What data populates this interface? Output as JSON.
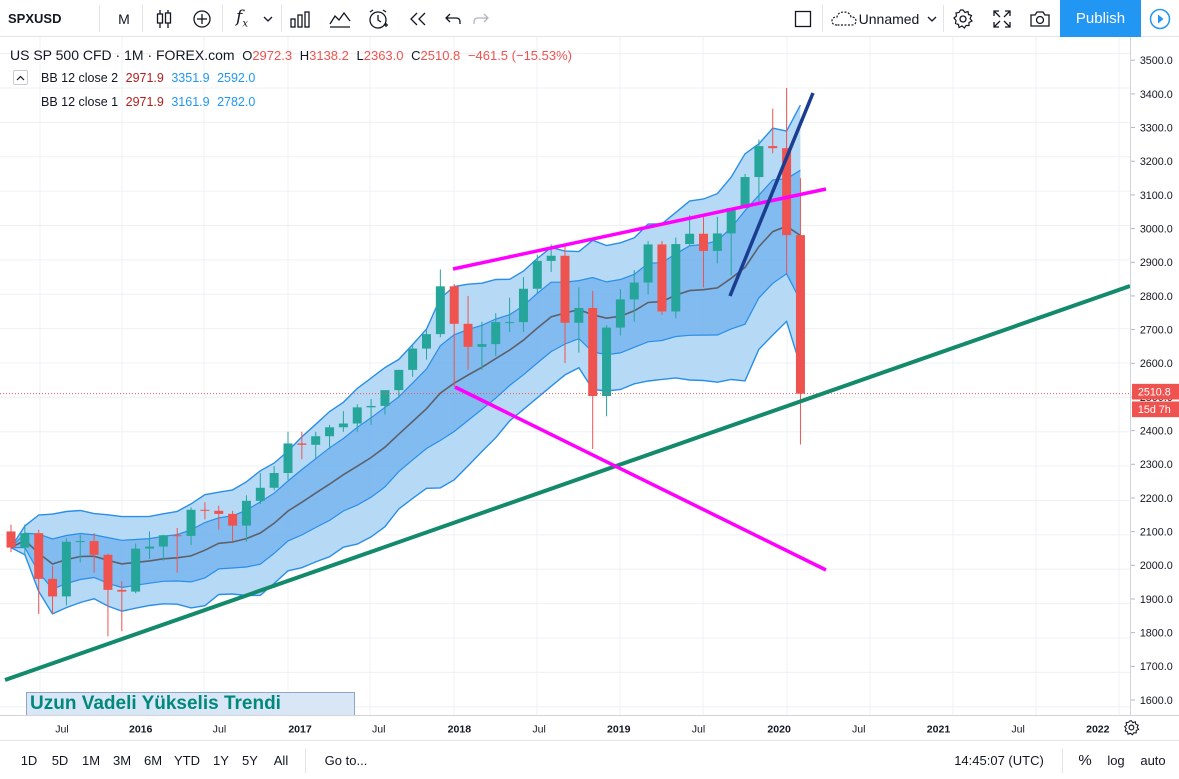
{
  "toolbar": {
    "symbol": "SPXUSD",
    "interval": "M",
    "layout_name": "Unnamed",
    "publish_label": "Publish"
  },
  "legend": {
    "main": {
      "title": "US SP 500 CFD · 1M · FOREX.com",
      "o_label": "O",
      "o_value": "2972.3",
      "h_label": "H",
      "h_value": "3138.2",
      "l_label": "L",
      "l_value": "2363.0",
      "c_label": "C",
      "c_value": "2510.8",
      "change": "−461.5 (−15.53%)"
    },
    "bb2": {
      "name": "BB 12 close 2",
      "basis": "2971.9",
      "upper": "3351.9",
      "lower": "2592.0"
    },
    "bb1": {
      "name": "BB 12 close 1",
      "basis": "2971.9",
      "upper": "3161.9",
      "lower": "2782.0"
    }
  },
  "price_axis": {
    "ticks": [
      "3500.0",
      "3400.0",
      "3300.0",
      "3200.0",
      "3100.0",
      "3000.0",
      "2900.0",
      "2800.0",
      "2700.0",
      "2600.0",
      "2500.0",
      "2400.0",
      "2300.0",
      "2200.0",
      "2100.0",
      "2000.0",
      "1900.0",
      "1800.0",
      "1700.0",
      "1600.0"
    ],
    "last_price": "2510.8",
    "countdown": "15d 7h"
  },
  "time_axis": {
    "labels": [
      "Jul",
      "2016",
      "Jul",
      "2017",
      "Jul",
      "2018",
      "Jul",
      "2019",
      "Jul",
      "2020",
      "Jul",
      "2021",
      "Jul",
      "2022"
    ]
  },
  "annotation": {
    "text": "Uzun Vadeli Yükselis Trendi"
  },
  "bottom": {
    "ranges": [
      "1D",
      "5D",
      "1M",
      "3M",
      "6M",
      "YTD",
      "1Y",
      "5Y",
      "All"
    ],
    "goto": "Go to...",
    "time": "14:45:07 (UTC)",
    "percent": "%",
    "log": "log",
    "auto": "auto"
  },
  "colors": {
    "up": "#26a69a",
    "down": "#ef5350",
    "accent": "#2196f3",
    "bb_outer": "#a9d3f5",
    "bb_inner": "#6fb0ee",
    "basis": "#5d606b",
    "magenta": "#ff00ff",
    "green_trend": "#138a6b",
    "blue_trend": "#1a3d8f"
  },
  "chart_data": {
    "type": "candlestick",
    "interval": "1M",
    "x": [
      "2015-06",
      "2015-07",
      "2015-08",
      "2015-09",
      "2015-10",
      "2015-11",
      "2015-12",
      "2016-01",
      "2016-02",
      "2016-03",
      "2016-04",
      "2016-05",
      "2016-06",
      "2016-07",
      "2016-08",
      "2016-09",
      "2016-10",
      "2016-11",
      "2016-12",
      "2017-01",
      "2017-02",
      "2017-03",
      "2017-04",
      "2017-05",
      "2017-06",
      "2017-07",
      "2017-08",
      "2017-09",
      "2017-10",
      "2017-11",
      "2017-12",
      "2018-01",
      "2018-02",
      "2018-03",
      "2018-04",
      "2018-05",
      "2018-06",
      "2018-07",
      "2018-08",
      "2018-09",
      "2018-10",
      "2018-11",
      "2018-12",
      "2019-01",
      "2019-02",
      "2019-03",
      "2019-04",
      "2019-05",
      "2019-06",
      "2019-07",
      "2019-08",
      "2019-09",
      "2019-10",
      "2019-11",
      "2019-12",
      "2020-01",
      "2020-02",
      "2020-03"
    ],
    "open": [
      2110,
      2063,
      2105,
      1972,
      1921,
      2080,
      2082,
      2042,
      1940,
      1935,
      2060,
      2066,
      2099,
      2097,
      2173,
      2170,
      2161,
      2127,
      2199,
      2237,
      2280,
      2366,
      2362,
      2387,
      2413,
      2424,
      2471,
      2475,
      2521,
      2580,
      2642,
      2684,
      2823,
      2714,
      2647,
      2655,
      2719,
      2719,
      2816,
      2897,
      2912,
      2717,
      2760,
      2504,
      2703,
      2785,
      2834,
      2945,
      2750,
      2946,
      2976,
      2926,
      2977,
      3051,
      3141,
      3231,
      3225,
      2972
    ],
    "high": [
      2130,
      2130,
      2115,
      2010,
      2090,
      2100,
      2105,
      2045,
      1965,
      2075,
      2110,
      2100,
      2120,
      2180,
      2195,
      2185,
      2170,
      2215,
      2280,
      2300,
      2400,
      2400,
      2400,
      2420,
      2460,
      2480,
      2495,
      2520,
      2580,
      2650,
      2695,
      2872,
      2830,
      2795,
      2720,
      2745,
      2790,
      2850,
      2915,
      2945,
      2940,
      2820,
      2810,
      2710,
      2815,
      2870,
      2955,
      2955,
      2965,
      3030,
      3030,
      3025,
      3050,
      3150,
      3250,
      3340,
      3400,
      3138
    ],
    "low": [
      2050,
      2040,
      1870,
      1870,
      1895,
      2020,
      1990,
      1805,
      1820,
      1930,
      2030,
      2025,
      1990,
      2070,
      2145,
      2115,
      2080,
      2080,
      2190,
      2230,
      2260,
      2320,
      2320,
      2350,
      2400,
      2400,
      2420,
      2450,
      2500,
      2560,
      2610,
      2675,
      2530,
      2580,
      2580,
      2620,
      2690,
      2690,
      2800,
      2865,
      2600,
      2630,
      2350,
      2445,
      2680,
      2720,
      2800,
      2740,
      2730,
      2940,
      2820,
      2890,
      2855,
      3050,
      3070,
      3210,
      2860,
      2363
    ],
    "close": [
      2063,
      2105,
      1972,
      1921,
      2080,
      2082,
      2042,
      1940,
      1935,
      2060,
      2066,
      2099,
      2097,
      2173,
      2170,
      2161,
      2127,
      2199,
      2237,
      2280,
      2366,
      2362,
      2387,
      2413,
      2424,
      2471,
      2475,
      2521,
      2580,
      2642,
      2684,
      2823,
      2714,
      2647,
      2655,
      2719,
      2719,
      2816,
      2897,
      2912,
      2717,
      2760,
      2504,
      2703,
      2785,
      2834,
      2945,
      2750,
      2946,
      2976,
      2926,
      2977,
      3051,
      3141,
      3231,
      3225,
      2972,
      2510.8
    ],
    "ylim": [
      1580,
      3560
    ]
  }
}
